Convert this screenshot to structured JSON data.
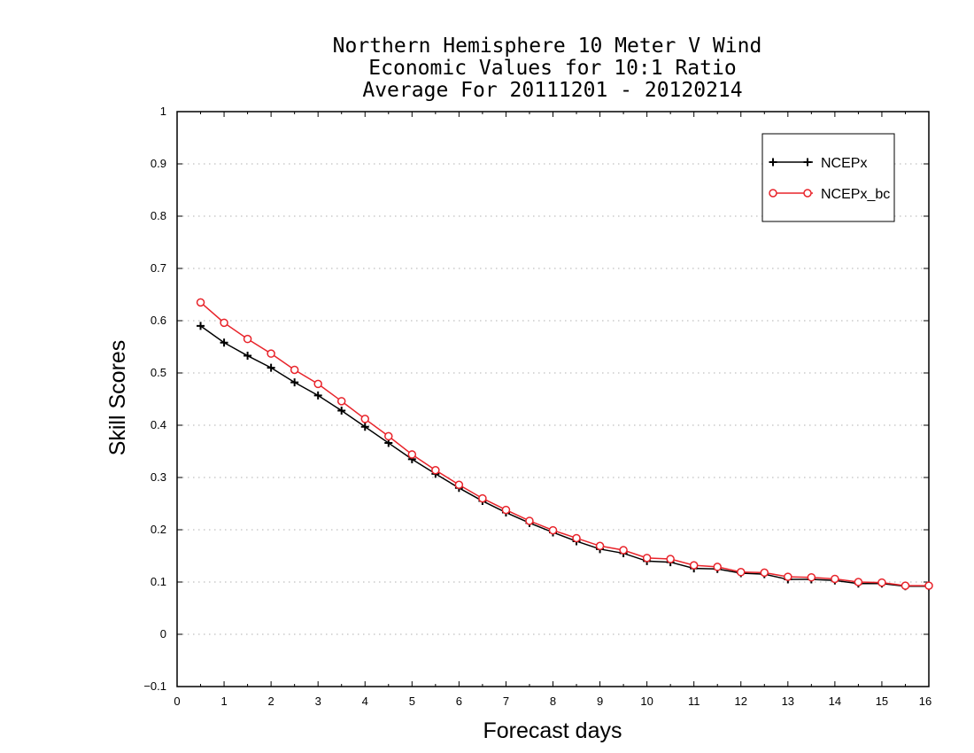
{
  "chart_data": {
    "type": "line",
    "title": [
      "Northern Hemisphere 10 Meter V Wind",
      "Economic Values for 10:1 Ratio",
      "Average For 20111201 - 20120214"
    ],
    "xlabel": "Forecast days",
    "ylabel": "Skill Scores",
    "xlim": [
      0,
      16
    ],
    "ylim": [
      -0.1,
      1
    ],
    "xticks": [
      0,
      1,
      2,
      3,
      4,
      5,
      6,
      7,
      8,
      9,
      10,
      11,
      12,
      13,
      14,
      15,
      16
    ],
    "yticks": [
      -0.1,
      0,
      0.1,
      0.2,
      0.3,
      0.4,
      0.5,
      0.6,
      0.7,
      0.8,
      0.9,
      1
    ],
    "ytick_labels": [
      "−0.1",
      "0",
      "0.1",
      "0.2",
      "0.3",
      "0.4",
      "0.5",
      "0.6",
      "0.7",
      "0.8",
      "0.9",
      "1"
    ],
    "grid": "horizontal-dotted",
    "legend_position": "top-right",
    "x": [
      0.5,
      1,
      1.5,
      2,
      2.5,
      3,
      3.5,
      4,
      4.5,
      5,
      5.5,
      6,
      6.5,
      7,
      7.5,
      8,
      8.5,
      9,
      9.5,
      10,
      10.5,
      11,
      11.5,
      12,
      12.5,
      13,
      13.5,
      14,
      14.5,
      15,
      15.5,
      16
    ],
    "series": [
      {
        "name": "NCEPx",
        "color": "#000000",
        "marker": "plus",
        "values": [
          0.59,
          0.558,
          0.533,
          0.51,
          0.482,
          0.457,
          0.428,
          0.397,
          0.366,
          0.335,
          0.307,
          0.28,
          0.255,
          0.233,
          0.213,
          0.195,
          0.178,
          0.163,
          0.155,
          0.14,
          0.138,
          0.126,
          0.125,
          0.117,
          0.115,
          0.105,
          0.105,
          0.103,
          0.097,
          0.097,
          0.092,
          0.092
        ]
      },
      {
        "name": "NCEPx_bc",
        "color": "#e8232a",
        "marker": "circle",
        "values": [
          0.635,
          0.596,
          0.565,
          0.537,
          0.506,
          0.479,
          0.446,
          0.412,
          0.379,
          0.344,
          0.314,
          0.286,
          0.26,
          0.238,
          0.217,
          0.199,
          0.184,
          0.169,
          0.161,
          0.146,
          0.144,
          0.132,
          0.129,
          0.119,
          0.118,
          0.11,
          0.109,
          0.106,
          0.1,
          0.099,
          0.093,
          0.093
        ]
      }
    ]
  }
}
